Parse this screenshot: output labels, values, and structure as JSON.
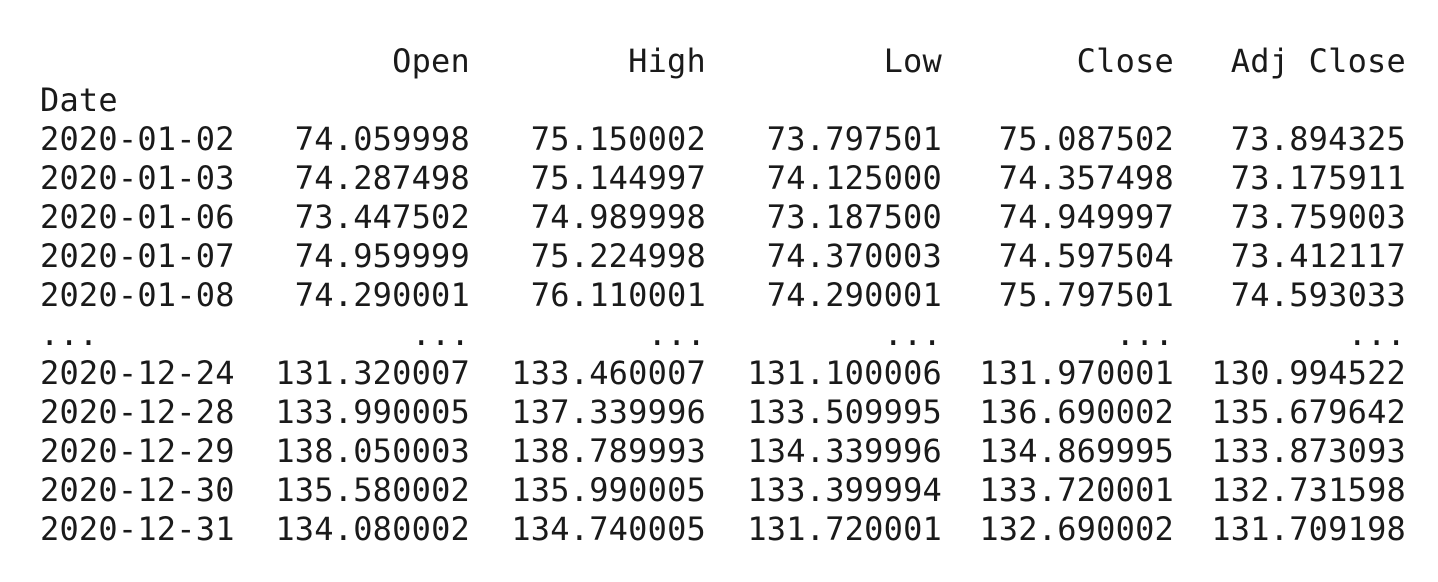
{
  "columns": [
    "Open",
    "High",
    "Low",
    "Close",
    "Adj Close"
  ],
  "index_name": "Date",
  "ellipsis": "...",
  "rows_top": [
    {
      "date": "2020-01-02",
      "values": [
        "74.059998",
        "75.150002",
        "73.797501",
        "75.087502",
        "73.894325"
      ]
    },
    {
      "date": "2020-01-03",
      "values": [
        "74.287498",
        "75.144997",
        "74.125000",
        "74.357498",
        "73.175911"
      ]
    },
    {
      "date": "2020-01-06",
      "values": [
        "73.447502",
        "74.989998",
        "73.187500",
        "74.949997",
        "73.759003"
      ]
    },
    {
      "date": "2020-01-07",
      "values": [
        "74.959999",
        "75.224998",
        "74.370003",
        "74.597504",
        "73.412117"
      ]
    },
    {
      "date": "2020-01-08",
      "values": [
        "74.290001",
        "76.110001",
        "74.290001",
        "75.797501",
        "74.593033"
      ]
    }
  ],
  "rows_bottom": [
    {
      "date": "2020-12-24",
      "values": [
        "131.320007",
        "133.460007",
        "131.100006",
        "131.970001",
        "130.994522"
      ]
    },
    {
      "date": "2020-12-28",
      "values": [
        "133.990005",
        "137.339996",
        "133.509995",
        "136.690002",
        "135.679642"
      ]
    },
    {
      "date": "2020-12-29",
      "values": [
        "138.050003",
        "138.789993",
        "134.339996",
        "134.869995",
        "133.873093"
      ]
    },
    {
      "date": "2020-12-30",
      "values": [
        "135.580002",
        "135.990005",
        "133.399994",
        "133.720001",
        "132.731598"
      ]
    },
    {
      "date": "2020-12-31",
      "values": [
        "134.080002",
        "134.740005",
        "131.720001",
        "132.690002",
        "131.709198"
      ]
    }
  ]
}
